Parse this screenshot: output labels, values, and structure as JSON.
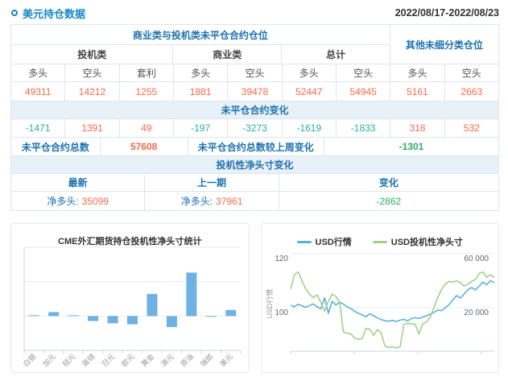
{
  "header": {
    "title": "美元持仓数据",
    "date_range": "2022/08/17-2022/08/23"
  },
  "table": {
    "group_main": "商业类与投机类未平仓合约仓位",
    "group_other": "其他未细分类仓位",
    "subgroups": [
      "投机类",
      "商业类",
      "总计"
    ],
    "col_headers": [
      "多头",
      "空头",
      "套利",
      "多头",
      "空头",
      "多头",
      "空头",
      "多头",
      "空头"
    ],
    "open_interest": [
      "49311",
      "14212",
      "1255",
      "1881",
      "39478",
      "52447",
      "54945",
      "5161",
      "2663"
    ],
    "change_header": "未平仓合约变化",
    "change": [
      "-1471",
      "1391",
      "49",
      "-197",
      "-3273",
      "-1619",
      "-1833",
      "318",
      "532"
    ],
    "total_label": "未平仓合约总数",
    "total_value": "57608",
    "total_change_label": "未平仓合约总数较上周变化",
    "total_change_value": "-1301",
    "net_header": "投机性净头寸变化",
    "net_cols": [
      "最新",
      "上一期",
      "变化"
    ],
    "net_latest_label": "净多头:",
    "net_latest_value": "35099",
    "net_prev_label": "净多头:",
    "net_prev_value": "37961",
    "net_change_value": "-2862"
  },
  "colors": {
    "accent_blue": "#1887c8",
    "table_blue": "#1d72b0",
    "positive": "#f9694a",
    "negative_teal": "#26b29e",
    "negative_green": "#2cae66",
    "bar_fill": "#6eb1e3",
    "line_blue": "#5cb3da",
    "line_green": "#a2d18a"
  },
  "chart_data": [
    {
      "type": "bar",
      "title": "CME外汇期货持仓投机性净头寸统计",
      "categories": [
        "白银",
        "加元",
        "纽元",
        "英镑",
        "日元",
        "欧元",
        "黄金",
        "澳元",
        "原油",
        "瑞郎",
        "美元"
      ],
      "values": [
        1000,
        23000,
        500,
        -29000,
        -42000,
        -48000,
        129000,
        -64000,
        253000,
        -1000,
        35099
      ],
      "xlabel": "",
      "ylabel": "",
      "ylim": [
        -200000,
        400000
      ],
      "grid_step": 200000,
      "grid": true,
      "bar_color": "#6eb1e3",
      "note": "y axis unlabeled in source; values estimated from gridline spacing"
    },
    {
      "type": "line",
      "legend": [
        "USD行情",
        "USD投机性净头寸"
      ],
      "legend_position": "top",
      "ylabel_left": "USD行情",
      "left_axis": {
        "tick_labels": [
          "120",
          "100"
        ],
        "tick_values": [
          120,
          100
        ],
        "range": [
          84,
          120
        ]
      },
      "right_axis": {
        "tick_labels": [
          "60 000",
          "20 000"
        ],
        "tick_values": [
          60000,
          20000
        ],
        "range": [
          -12200,
          60000
        ]
      },
      "x_range": [
        0,
        1
      ],
      "series": [
        {
          "name": "USD行情",
          "axis": "left",
          "color": "#5cb3da",
          "values": [
            100.9,
            100.4,
            101.3,
            100.7,
            100.2,
            100.8,
            101.4,
            100.3,
            99.6,
            103.7,
            97.9,
            102.4,
            101.0,
            102.1,
            101.3,
            100.3,
            99.6,
            98.7,
            97.9,
            97.3,
            96.7,
            97.8,
            97.0,
            96.2,
            95.6,
            95.2,
            95.0,
            95.3,
            94.9,
            95.4,
            95.7,
            95.1,
            96.0,
            96.3,
            96.0,
            96.5,
            97.0,
            97.6,
            98.3,
            99.1,
            98.9,
            100.0,
            101.1,
            102.9,
            104.5,
            103.6,
            105.1,
            106.7,
            107.5,
            106.6,
            108.1,
            109.5,
            108.5,
            110.1,
            109.3
          ]
        },
        {
          "name": "USD投机性净头寸",
          "axis": "right",
          "color": "#a2d18a",
          "values": [
            34000,
            44500,
            46500,
            40000,
            34000,
            30000,
            27500,
            29500,
            24000,
            17500,
            25000,
            30000,
            28500,
            24000,
            2000,
            1000,
            500,
            -2500,
            -3500,
            -2800,
            4800,
            4000,
            -500,
            3800,
            1500,
            -8500,
            -9500,
            -9000,
            -9800,
            -9200,
            7500,
            8500,
            8000,
            7800,
            500,
            8000,
            9500,
            13000,
            20000,
            27500,
            33500,
            37500,
            39500,
            39000,
            40000,
            38500,
            36000,
            37500,
            39500,
            41000,
            45500,
            46500,
            42500,
            44500,
            42500
          ]
        }
      ]
    }
  ]
}
